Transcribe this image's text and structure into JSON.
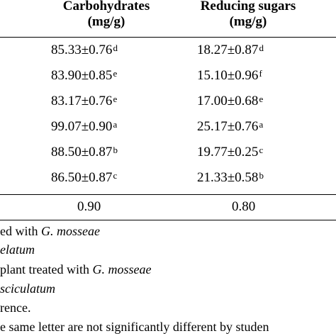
{
  "table": {
    "headers": [
      {
        "line1": "Carbohydrates",
        "line2": "(mg/g)"
      },
      {
        "line1": "Reducing sugars",
        "line2": "(mg/g)"
      }
    ],
    "rows": [
      {
        "carb_value": "85.33±0.76",
        "carb_letter": "d",
        "sugar_value": "18.27±0.87",
        "sugar_letter": "d"
      },
      {
        "carb_value": "83.90±0.85",
        "carb_letter": "e",
        "sugar_value": "15.10±0.96",
        "sugar_letter": "f"
      },
      {
        "carb_value": "83.17±0.76",
        "carb_letter": "e",
        "sugar_value": "17.00±0.68",
        "sugar_letter": "e"
      },
      {
        "carb_value": "99.07±0.90",
        "carb_letter": "a",
        "sugar_value": "25.17±0.76",
        "sugar_letter": "a"
      },
      {
        "carb_value": "88.50±0.87",
        "carb_letter": "b",
        "sugar_value": "19.77±0.25",
        "sugar_letter": "c"
      },
      {
        "carb_value": "86.50±0.87",
        "carb_letter": "c",
        "sugar_value": "21.33±0.58",
        "sugar_letter": "b"
      }
    ],
    "lsd": {
      "carb": "0.90",
      "sugar": "0.80"
    }
  },
  "footnotes": [
    {
      "prefix": "ed with ",
      "italic": "G. mosseae",
      "suffix": ""
    },
    {
      "prefix": "",
      "italic": "elatum",
      "suffix": ""
    },
    {
      "prefix": "plant treated with ",
      "italic": "G. mosseae",
      "suffix": ""
    },
    {
      "prefix": "",
      "italic": "sciculatum",
      "suffix": ""
    },
    {
      "prefix": "rence.",
      "italic": "",
      "suffix": ""
    },
    {
      "prefix": "e same letter are not significantly different by studen",
      "italic": "",
      "suffix": ""
    }
  ]
}
